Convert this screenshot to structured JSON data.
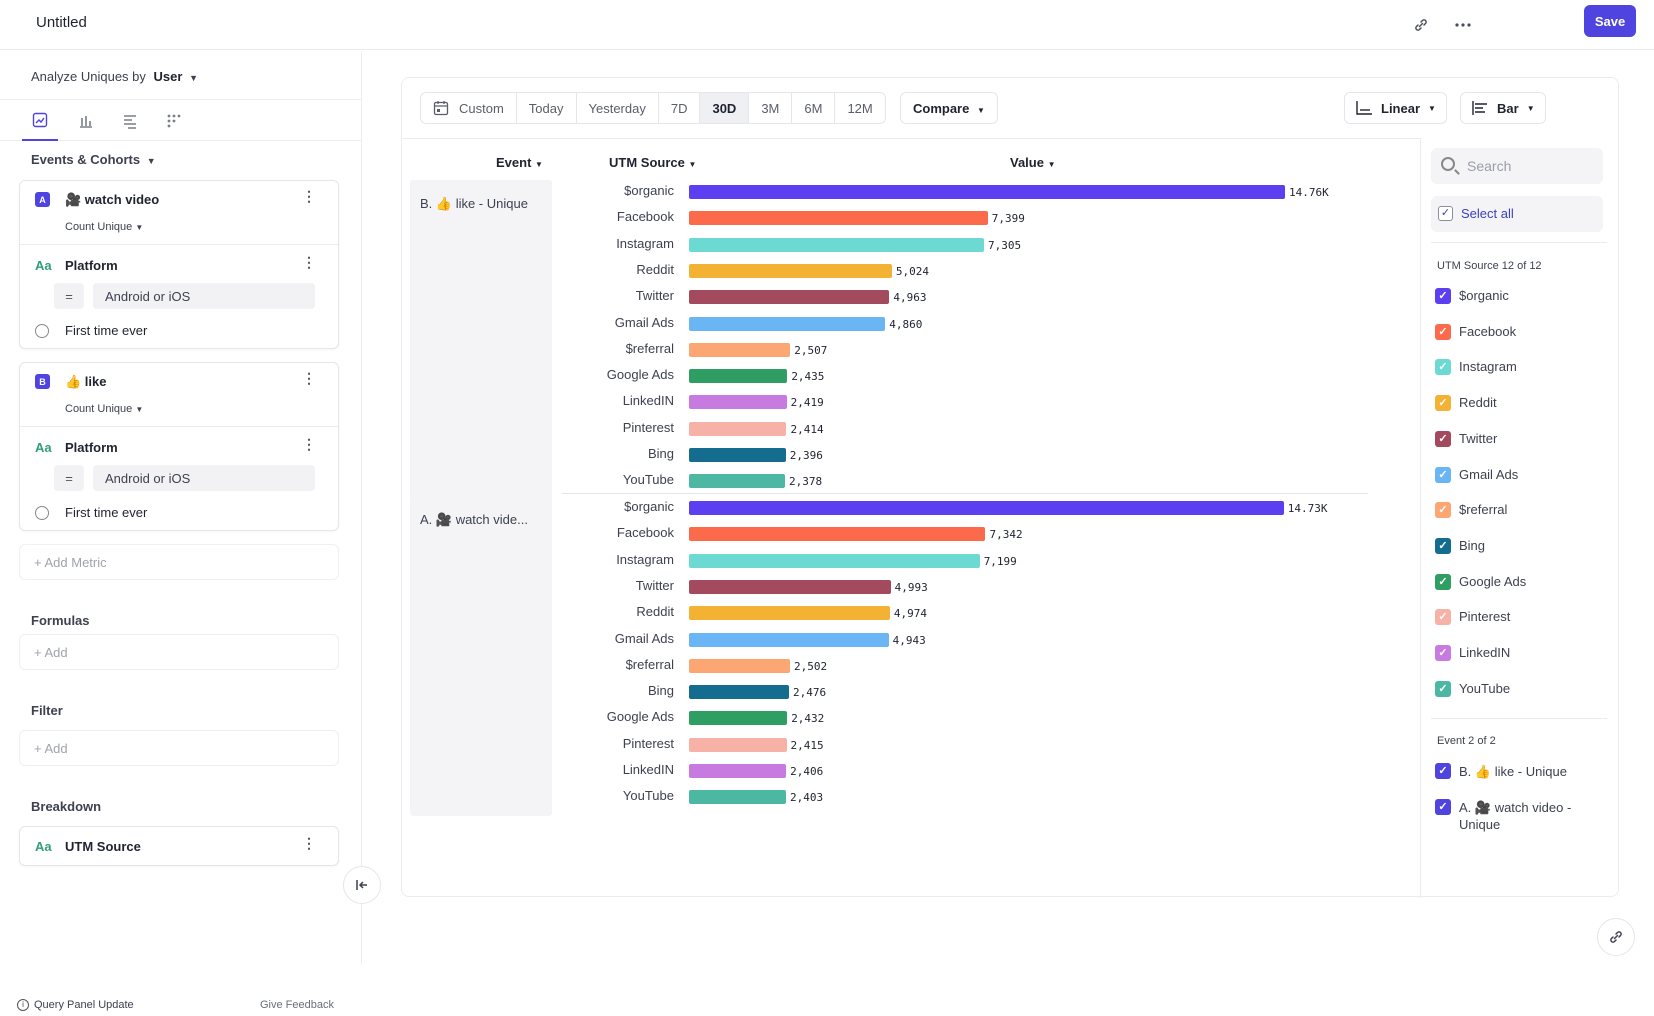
{
  "header": {
    "title": "Untitled",
    "save_label": "Save",
    "icons": [
      "link-icon",
      "more-icon"
    ]
  },
  "left_panel": {
    "analyze_prefix": "Analyze Uniques by",
    "analyze_value": "User",
    "view_tabs": [
      "insights-icon",
      "bar-icon",
      "flow-icon",
      "grid-icon"
    ],
    "events_heading": "Events & Cohorts",
    "metrics": [
      {
        "badge": "A",
        "name": "🎥 watch video",
        "measure": "Count Unique",
        "filter_type": "Aa",
        "filter_prop": "Platform",
        "operator": "=",
        "filter_value": "Android or iOS",
        "time_rule": "First time ever"
      },
      {
        "badge": "B",
        "name": "👍 like",
        "measure": "Count Unique",
        "filter_type": "Aa",
        "filter_prop": "Platform",
        "operator": "=",
        "filter_value": "Android or iOS",
        "time_rule": "First time ever"
      }
    ],
    "add_metric": "Add Metric",
    "formulas_heading": "Formulas",
    "formulas_add": "Add",
    "filter_heading": "Filter",
    "filter_add": "Add",
    "breakdown_heading": "Breakdown",
    "breakdown_type": "Aa",
    "breakdown_prop": "UTM Source",
    "footer_left": "Query Panel Update",
    "footer_right": "Give Feedback"
  },
  "toolbar": {
    "ranges": [
      "Custom",
      "Today",
      "Yesterday",
      "7D",
      "30D",
      "3M",
      "6M",
      "12M"
    ],
    "active_range": "30D",
    "compare": "Compare",
    "scale": "Linear",
    "chart_type": "Bar"
  },
  "chart_headers": {
    "event": "Event",
    "source": "UTM Source",
    "value": "Value"
  },
  "colors": {
    "$organic": "#5b3ff0",
    "Facebook": "#fb6a4a",
    "Instagram": "#6cd9d2",
    "Reddit": "#f4b234",
    "Twitter": "#a44a5e",
    "Gmail Ads": "#6ab6f5",
    "$referral": "#fca674",
    "Google Ads": "#2f9e63",
    "LinkedIN": "#c77ae0",
    "Pinterest": "#f7b2a8",
    "Bing": "#146c8f",
    "YouTube": "#4cb8a4"
  },
  "chart_data": {
    "type": "bar",
    "orientation": "horizontal",
    "max_value": 14760,
    "groups": [
      {
        "name": "B. 👍 like - Unique",
        "rows": [
          {
            "label": "$organic",
            "value": 14760,
            "display": "14.76K"
          },
          {
            "label": "Facebook",
            "value": 7399,
            "display": "7,399"
          },
          {
            "label": "Instagram",
            "value": 7305,
            "display": "7,305"
          },
          {
            "label": "Reddit",
            "value": 5024,
            "display": "5,024"
          },
          {
            "label": "Twitter",
            "value": 4963,
            "display": "4,963"
          },
          {
            "label": "Gmail Ads",
            "value": 4860,
            "display": "4,860"
          },
          {
            "label": "$referral",
            "value": 2507,
            "display": "2,507"
          },
          {
            "label": "Google Ads",
            "value": 2435,
            "display": "2,435"
          },
          {
            "label": "LinkedIN",
            "value": 2419,
            "display": "2,419"
          },
          {
            "label": "Pinterest",
            "value": 2414,
            "display": "2,414"
          },
          {
            "label": "Bing",
            "value": 2396,
            "display": "2,396"
          },
          {
            "label": "YouTube",
            "value": 2378,
            "display": "2,378"
          }
        ]
      },
      {
        "name": "A. 🎥 watch vide...",
        "rows": [
          {
            "label": "$organic",
            "value": 14730,
            "display": "14.73K"
          },
          {
            "label": "Facebook",
            "value": 7342,
            "display": "7,342"
          },
          {
            "label": "Instagram",
            "value": 7199,
            "display": "7,199"
          },
          {
            "label": "Twitter",
            "value": 4993,
            "display": "4,993"
          },
          {
            "label": "Reddit",
            "value": 4974,
            "display": "4,974"
          },
          {
            "label": "Gmail Ads",
            "value": 4943,
            "display": "4,943"
          },
          {
            "label": "$referral",
            "value": 2502,
            "display": "2,502"
          },
          {
            "label": "Bing",
            "value": 2476,
            "display": "2,476"
          },
          {
            "label": "Google Ads",
            "value": 2432,
            "display": "2,432"
          },
          {
            "label": "Pinterest",
            "value": 2415,
            "display": "2,415"
          },
          {
            "label": "LinkedIN",
            "value": 2406,
            "display": "2,406"
          },
          {
            "label": "YouTube",
            "value": 2403,
            "display": "2,403"
          }
        ]
      }
    ]
  },
  "legend": {
    "search_placeholder": "Search",
    "select_all": "Select all",
    "source_heading": "UTM Source 12 of 12",
    "sources": [
      "$organic",
      "Facebook",
      "Instagram",
      "Reddit",
      "Twitter",
      "Gmail Ads",
      "$referral",
      "Bing",
      "Google Ads",
      "Pinterest",
      "LinkedIN",
      "YouTube"
    ],
    "event_heading": "Event 2 of 2",
    "events": [
      "B. 👍 like - Unique",
      "A. 🎥 watch video - Unique"
    ]
  }
}
